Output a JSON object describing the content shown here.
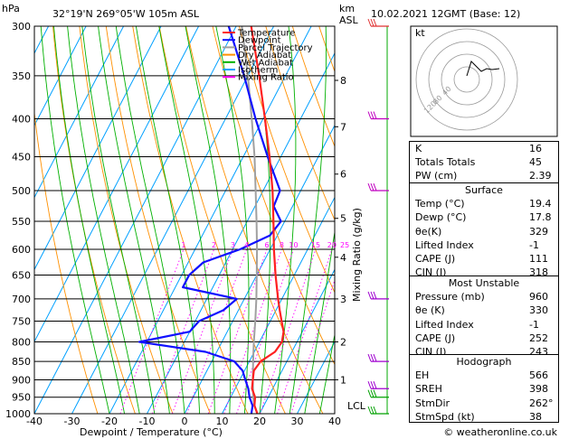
{
  "header": {
    "hpa_label": "hPa",
    "location": "32°19'N  269°05'W  105m  ASL",
    "km_label": "km",
    "asl_label": "ASL",
    "datetime": "10.02.2021  12GMT  (Base: 12)"
  },
  "footer": {
    "credit": "© weatheronline.co.uk"
  },
  "legend": [
    {
      "label": "Temperature",
      "color": "#ff2020"
    },
    {
      "label": "Dewpoint",
      "color": "#1010ff"
    },
    {
      "label": "Parcel Trajectory",
      "color": "#a0a0a0"
    },
    {
      "label": "Dry Adiabat",
      "color": "#ff9000"
    },
    {
      "label": "Wet Adiabat",
      "color": "#00b000"
    },
    {
      "label": "Isotherm",
      "color": "#00a0ff"
    },
    {
      "label": "Mixing Ratio",
      "color": "#ff00ff"
    }
  ],
  "chart_data": {
    "type": "skew-t",
    "xlabel": "Dewpoint / Temperature (°C)",
    "right_axis_label": "Mixing Ratio (g/kg)",
    "temperature_ticks": [
      -40,
      -30,
      -20,
      -10,
      0,
      10,
      20,
      30,
      40
    ],
    "pressure_levels": [
      300,
      350,
      400,
      450,
      500,
      550,
      600,
      650,
      700,
      750,
      800,
      850,
      900,
      950,
      1000
    ],
    "km_ticks": [
      "1",
      "2",
      "3",
      "4",
      "5",
      "6",
      "7",
      "8"
    ],
    "lcl_label": "LCL",
    "mixing_ratio_labels": [
      "1",
      "2",
      "3",
      "4",
      "6",
      "8",
      "10",
      "15",
      "20",
      "25"
    ],
    "temperature_profile": [
      [
        1000,
        19.4
      ],
      [
        975,
        17.5
      ],
      [
        950,
        16.5
      ],
      [
        925,
        14.5
      ],
      [
        900,
        13.5
      ],
      [
        875,
        12.5
      ],
      [
        850,
        13
      ],
      [
        825,
        15.5
      ],
      [
        800,
        16
      ],
      [
        775,
        15
      ],
      [
        750,
        13
      ],
      [
        725,
        11
      ],
      [
        700,
        9
      ],
      [
        650,
        5
      ],
      [
        600,
        1
      ],
      [
        550,
        -3
      ],
      [
        500,
        -7.5
      ],
      [
        450,
        -13
      ],
      [
        400,
        -19.5
      ],
      [
        350,
        -27
      ],
      [
        300,
        -36
      ]
    ],
    "dewpoint_profile": [
      [
        1000,
        17.8
      ],
      [
        975,
        17
      ],
      [
        950,
        15
      ],
      [
        925,
        13.5
      ],
      [
        900,
        11.5
      ],
      [
        875,
        9.5
      ],
      [
        850,
        6
      ],
      [
        825,
        -3
      ],
      [
        800,
        -22
      ],
      [
        775,
        -10
      ],
      [
        750,
        -9
      ],
      [
        725,
        -4
      ],
      [
        700,
        -2
      ],
      [
        675,
        -18
      ],
      [
        650,
        -18
      ],
      [
        625,
        -16
      ],
      [
        600,
        -8
      ],
      [
        575,
        -2
      ],
      [
        550,
        -1
      ],
      [
        525,
        -5
      ],
      [
        500,
        -5.5
      ],
      [
        450,
        -13.5
      ],
      [
        400,
        -22
      ],
      [
        350,
        -31
      ],
      [
        300,
        -42
      ]
    ],
    "parcel_profile": [
      [
        1000,
        19.4
      ],
      [
        975,
        17.5
      ],
      [
        950,
        16
      ],
      [
        900,
        13.5
      ],
      [
        850,
        11
      ],
      [
        800,
        8.5
      ],
      [
        750,
        6
      ],
      [
        700,
        3.2
      ],
      [
        650,
        0
      ],
      [
        600,
        -3.5
      ],
      [
        550,
        -7.5
      ],
      [
        500,
        -12
      ],
      [
        450,
        -17
      ],
      [
        400,
        -23
      ],
      [
        350,
        -30
      ],
      [
        300,
        -38.5
      ]
    ],
    "wind_barbs_pressures": [
      300,
      400,
      500,
      700,
      850,
      925,
      950,
      1000
    ]
  },
  "hodograph": {
    "kt_label": "kt",
    "ring_labels": [
      "40",
      "80",
      "120"
    ]
  },
  "indices": {
    "top": [
      {
        "label": "K",
        "value": "16"
      },
      {
        "label": "Totals Totals",
        "value": "45"
      },
      {
        "label": "PW (cm)",
        "value": "2.39"
      }
    ],
    "surface": {
      "title": "Surface",
      "rows": [
        {
          "label": "Temp (°C)",
          "value": "19.4"
        },
        {
          "label": "Dewp (°C)",
          "value": "17.8"
        },
        {
          "label": "θe(K)",
          "value": "329"
        },
        {
          "label": "Lifted Index",
          "value": "-1"
        },
        {
          "label": "CAPE (J)",
          "value": "111"
        },
        {
          "label": "CIN (J)",
          "value": "318"
        }
      ]
    },
    "most_unstable": {
      "title": "Most Unstable",
      "rows": [
        {
          "label": "Pressure (mb)",
          "value": "960"
        },
        {
          "label": "θe (K)",
          "value": "330"
        },
        {
          "label": "Lifted Index",
          "value": "-1"
        },
        {
          "label": "CAPE (J)",
          "value": "252"
        },
        {
          "label": "CIN (J)",
          "value": "243"
        }
      ]
    },
    "hodograph": {
      "title": "Hodograph",
      "rows": [
        {
          "label": "EH",
          "value": "566"
        },
        {
          "label": "SREH",
          "value": "398"
        },
        {
          "label": "StmDir",
          "value": "262°"
        },
        {
          "label": "StmSpd (kt)",
          "value": "38"
        }
      ]
    }
  }
}
